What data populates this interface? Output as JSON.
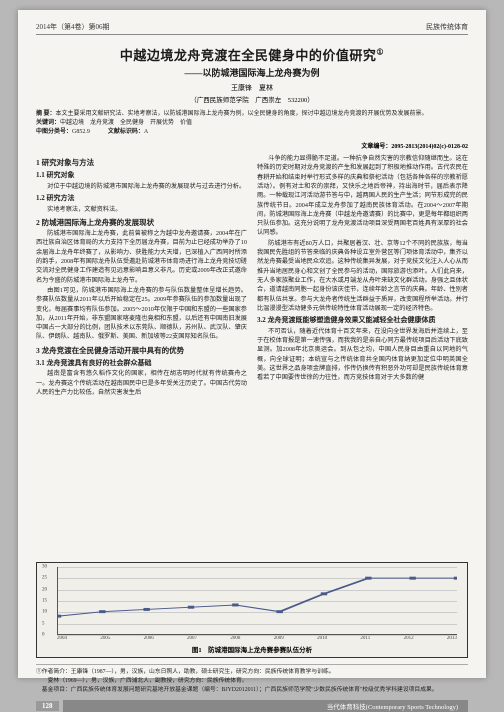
{
  "header": {
    "left": "2014年（第4卷）第06期",
    "right": "民族传统体育"
  },
  "title": {
    "main": "中越边境龙舟竞渡在全民健身中的价值研究",
    "sup": "①",
    "sub": "——以防城港国际海上龙舟赛为例"
  },
  "authors": "王康锋　夏林",
  "affiliation": "（广西民族师范学院　广西崇左　532200）",
  "abstract": {
    "label_abs": "摘 要：",
    "abs": "本文主要采用文献研究法、实地考察法，以防城港国际海上龙舟赛为例，以全民健身的角度，探讨中越边境龙舟竞渡的开展优势及发展前景。",
    "label_kw": "关键词：",
    "kw": "中越边境　龙舟竞渡　全民健身　开展优势　价值",
    "label_clc": "中图分类号：",
    "clc": "G852.9",
    "label_doccode": "文献标识码：",
    "doccode": "A"
  },
  "doc_id": "文章编号：2095-2813(2014)02(c)-0128-02",
  "sections": {
    "s1": "1 研究对象与方法",
    "s11": "1.1 研究对象",
    "p11": "对位于中越边境的防城港市国际海上龙舟赛的发展现状与过去进行分析。",
    "s12": "1.2 研究方法",
    "p12": "实地考察法，文献资料法。",
    "s2": "2 防城港国际海上龙舟赛的发展现状",
    "p21": "防城港市国际海上龙舟赛，此前曾被称之为越中龙舟邀请赛，2004年在广西壮族自治区体育局的大力支持下全历届龙舟赛，目前为止已经成功举办了10余届海上龙舟年终赛了，从影响力、获胜能力大天增，已深植入广西同时所添的韵手，2008年有国际龙舟队伍受邀赴防城港市体育场进行海上龙舟竞技切磋交流对全民健身工作建造有见远意影响且意义非凡。历史或2009年改正式邀命名为今盛的防城港市国际海上龙舟节。",
    "p22": "由图1可见，防城港市国际海上龙舟赛的参与队伍数量整体呈增长趋势。参赛队伍数量从2011年以后开始稳定在25。2009年参赛队伍的参加数量出现了变化，每届赛事均有队伍参加。2005～2010年仅限于中国和东盟的一些国家参加，从2011年开始，非东盟国家喀麦隆也竟相和东盟，以后还有中国南旧发展中国占一大部分的比例，团队技术以东莞队、顺德队，苏州队、武汉队、肇庆队、伊朗队、越南队、俄罗斯、美国、新加坡等22支国际知名队伍。",
    "s3": "3 龙舟竞渡在全民健身活动开展中具有的优势",
    "s31": "3.1 龙舟竞渡具有良好的社会群众基础",
    "p31": "越南是富含有悠久稻作文化的国家，相传在胡志明时代就有传统赛舟之一。龙舟赛这个传统活动在越南国民中已是多年受关注历史了。中国古代劳动人民的生产力比较低，自然灾害发生后",
    "p_r1": "斗争的能力显得脆不足道。一种抗争自然灾害的宗教信仰随继而生。这在特殊的历史时期对龙舟竞渡的产生和发展起到了积极地推动作用。古代农民在春耕开始和结束时举行形式多样的庆典和祭祀活动（包括各种各样的宗教祈愿活动）。例有对土和农的崇拜，又快乐之地后帝神，持出海时节，届后表示降雨。一种载现江河活动游节答与中，越两国人民的生产生活；同节形成完的民族传统节日。2004年成立龙舟参加了越南民族体育活动。在2004～2007年期间，防城港国际海上龙舟赛（中越龙舟邀请赛）的比赛中，更是每年都组织两只队伍参加。这充分说明了龙舟竞渡活动项目深受两国老百姓具有深厚的社会认同感。",
    "p_r2": "防城港市有近80万人口，共聚居着汉、壮、京等12个不同的民族族，每当我国民先胜组的节答来临的庆典各种设立室外营区等门项体育活动中，集齐以然龙舟赛最受当地民众欢追。这种传统集异发展，对于竞技文化注入人心从而推升当地居民身心和文创了全民参与的活动，国际旅游也添叶。人们此向来，无人多家族聚业工作，在大水或月端龙从舟叶来缺文化群活动。身强之且体状合，道请越南同胞一起身份该庆佳节，连续年龄之言节的庆典。年龄、性别者都有队伍共享。参与大龙舟者传统生活群益于质异，改变国程所举活动。并行比温漫漫型活动健多元供传统特性体育活动展现一定的经济特色。",
    "s32_right": "3.2 龙舟竞渡既能够塑造健身效果又能减轻全社会健康体质",
    "p32": "不可否认，随着近代体育十百文年来，在没向全世界发海后并连续上，至于在校体育报是第一速传强，而我我的是亲自心同方最传统项目后活动下底致显测。加2008年北京奥运会。到从包之均，中国人民身目由重自以同地的气概，向全球证明；本统宣与之传统体育共全国内体育纳更加定位中明英国全美。这世界之品身项金牌直排，作传仍换传有积恶外功可却是民族传统体育意看若了中国要传世徐的力往性，而方竞技体育对于大多数的健",
    "chart": {
      "type": "line",
      "caption": "图1　防城港国际海上龙舟赛参赛队伍分析",
      "x_labels": [
        "2004",
        "2005",
        "2006",
        "2007",
        "2008",
        "2009",
        "2010",
        "2011",
        "2012",
        "2013"
      ],
      "y_values": [
        8,
        10,
        11,
        12,
        13,
        10,
        18,
        25,
        25,
        25
      ],
      "ylim": [
        0,
        30
      ],
      "yticks": [
        0,
        5,
        10,
        15,
        20,
        25,
        30
      ],
      "line_color": "#4a5a8a",
      "marker_color": "#4a5a8a",
      "grid_color": "#cccccc",
      "background": "#f0efe9"
    }
  },
  "footnotes": {
    "f1": "①作者简介：王康锋（1987—），男，汉族，山东日照人，助教，硕士研究生，研究方向：民族传统体育教学与训练。",
    "f2": "　　夏林（1969—），男，汉族，广西浦北人，副教授，研究方向：民族传统体育。",
    "f3": "　基金项目：广西民族传统体育发展问题研究基地开放基金课题（编号：BJYD2012011）；广西民族师范学院\"少数民族传统体育\"校级优秀学科建设项目成果。"
  },
  "footer": {
    "page": "128",
    "journal": "当代体育科技(Contemporary Sports Technology)"
  }
}
